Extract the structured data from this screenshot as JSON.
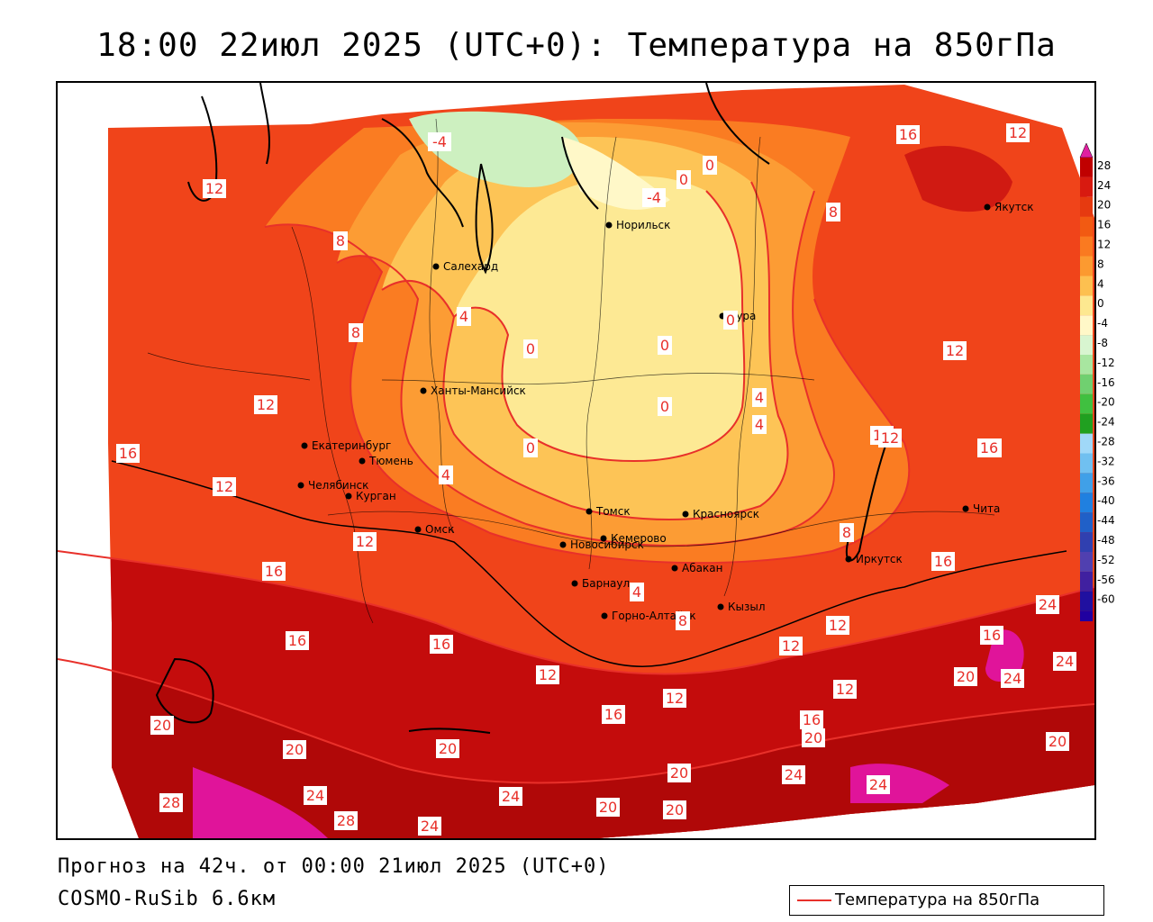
{
  "title": "18:00 22июл 2025 (UTC+0): Температура на 850гПа",
  "forecast_info": "Прогноз на 42ч. от 00:00 21июл 2025 (UTC+0)",
  "model_info": "COSMO-RuSib 6.6км",
  "legend": {
    "label": "Температура на 850гПа",
    "line_color": "#e8302a"
  },
  "colorbar": {
    "ticks": [
      "28",
      "24",
      "20",
      "16",
      "12",
      "8",
      "4",
      "0",
      "-4",
      "-8",
      "-12",
      "-16",
      "-20",
      "-24",
      "-28",
      "-32",
      "-36",
      "-40",
      "-44",
      "-48",
      "-52",
      "-56",
      "-60"
    ],
    "colors": [
      "#c00000",
      "#d81a10",
      "#e63a10",
      "#f25a12",
      "#fa7a20",
      "#fc9a30",
      "#fdc050",
      "#fde890",
      "#fff8c8",
      "#d8f5d0",
      "#a8e6a0",
      "#70d070",
      "#40c040",
      "#20a020",
      "#a0d8f8",
      "#70c0f0",
      "#40a0e8",
      "#2080e0",
      "#2060c8",
      "#3040b0",
      "#5040b0",
      "#4020a0",
      "#2010a0",
      "#2000a0"
    ],
    "top_arrow_color": "#e020a0",
    "bottom_arrow_color": "#8030d0"
  },
  "cities": [
    {
      "name": "Якутск",
      "lon": 129.7,
      "lat": 62.0
    },
    {
      "name": "Норильск",
      "lon": 88.2,
      "lat": 69.3
    },
    {
      "name": "Салехард",
      "lon": 66.6,
      "lat": 66.5
    },
    {
      "name": "Тура",
      "lon": 100.2,
      "lat": 64.3
    },
    {
      "name": "Ханты-Мансийск",
      "lon": 69.0,
      "lat": 61.0
    },
    {
      "name": "Екатеринбург",
      "lon": 60.6,
      "lat": 56.8
    },
    {
      "name": "Тюмень",
      "lon": 65.5,
      "lat": 57.1
    },
    {
      "name": "Челябинск",
      "lon": 61.4,
      "lat": 55.2
    },
    {
      "name": "Курган",
      "lon": 65.3,
      "lat": 55.4
    },
    {
      "name": "Омск",
      "lon": 73.4,
      "lat": 55.0
    },
    {
      "name": "Томск",
      "lon": 85.0,
      "lat": 56.5
    },
    {
      "name": "Красноярск",
      "lon": 92.9,
      "lat": 56.0
    },
    {
      "name": "Кемерово",
      "lon": 86.1,
      "lat": 55.3
    },
    {
      "name": "Новосибирск",
      "lon": 82.9,
      "lat": 55.0
    },
    {
      "name": "Абакан",
      "lon": 91.4,
      "lat": 53.7
    },
    {
      "name": "Барнаул",
      "lon": 83.8,
      "lat": 53.3
    },
    {
      "name": "Горно-Алтайск",
      "lon": 85.9,
      "lat": 51.9
    },
    {
      "name": "Кызыл",
      "lon": 94.4,
      "lat": 51.7
    },
    {
      "name": "Иркутск",
      "lon": 104.3,
      "lat": 52.3
    },
    {
      "name": "Чита",
      "lon": 113.5,
      "lat": 52.0
    }
  ],
  "isotherm_labels": [
    "-4",
    "-4",
    "0",
    "0",
    "0",
    "0",
    "0",
    "0",
    "0",
    "4",
    "4",
    "4",
    "4",
    "4",
    "8",
    "8",
    "8",
    "8",
    "8",
    "12",
    "12",
    "12",
    "12",
    "12",
    "12",
    "12",
    "12",
    "12",
    "12",
    "12",
    "12",
    "12",
    "12",
    "16",
    "16",
    "16",
    "16",
    "16",
    "16",
    "16",
    "16",
    "16",
    "16",
    "20",
    "20",
    "20",
    "20",
    "20",
    "20",
    "20",
    "20",
    "20",
    "24",
    "24",
    "24",
    "24",
    "24",
    "24",
    "24",
    "24",
    "28",
    "28"
  ]
}
